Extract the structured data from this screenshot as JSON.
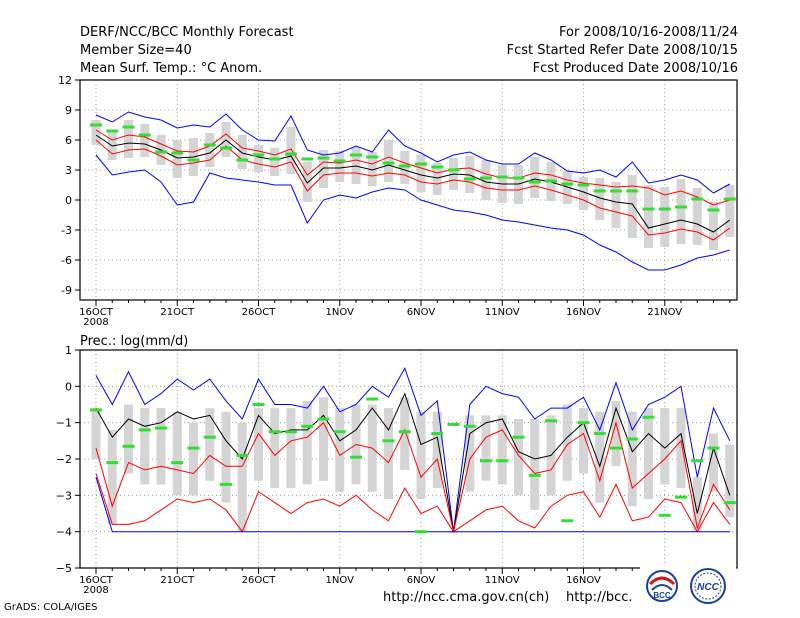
{
  "header": {
    "title": "DERF/NCC/BCC Monthly Forecast",
    "member_size": "Member Size=40",
    "temp_label": "Mean Surf. Temp.: °C Anom.",
    "period": "For 2008/10/16-2008/11/24",
    "started": "Fcst Started Refer Date 2008/10/15",
    "produced": "Fcst Produced Date 2008/10/16"
  },
  "footer": {
    "grads": "GrADS: COLA/IGES",
    "url1": "http://ncc.cma.gov.cn(ch)",
    "url2": "http://bcc.",
    "logo1": "BCC",
    "logo2": "NCC"
  },
  "colors": {
    "envelope": "#0000ff",
    "spread": "#ff0000",
    "mean": "#000000",
    "obs": "#33dd33",
    "box": "#d4d4d4"
  },
  "chart_data": [
    {
      "type": "line",
      "title": "Mean Surf. Temp.: °C Anom.",
      "ylim": [
        -10,
        12
      ],
      "yticks": [
        -9,
        -6,
        -3,
        0,
        3,
        6,
        9,
        12
      ],
      "ytick_labels": [
        "-9",
        "-6",
        "-3",
        "0",
        "3",
        "6",
        "9",
        "12"
      ],
      "xtick_days": [
        1,
        6,
        11,
        16,
        21,
        26,
        31,
        36
      ],
      "xtick_labels": [
        "16OCT",
        "21OCT",
        "26OCT",
        "1NOV",
        "6NOV",
        "11NOV",
        "16NOV",
        "21NOV"
      ],
      "xsub_label": "2008",
      "x_days": 40,
      "series": [
        {
          "name": "max",
          "values": [
            8.5,
            7.8,
            8.8,
            8.3,
            8.0,
            7.2,
            7.5,
            7.3,
            8.6,
            7.0,
            6.0,
            5.9,
            8.4,
            5.0,
            4.5,
            4.7,
            5.4,
            4.8,
            7.0,
            5.4,
            4.7,
            3.8,
            4.5,
            4.8,
            4.0,
            3.6,
            3.6,
            4.7,
            4.0,
            2.9,
            2.7,
            3.0,
            2.3,
            3.8,
            1.7,
            2.0,
            2.5,
            2.0,
            0.7,
            1.6
          ]
        },
        {
          "name": "upper",
          "values": [
            7.0,
            6.0,
            6.5,
            6.3,
            5.6,
            4.9,
            4.8,
            5.4,
            6.6,
            5.2,
            4.9,
            4.5,
            5.1,
            2.5,
            3.8,
            3.7,
            4.0,
            3.6,
            4.3,
            3.7,
            3.2,
            2.7,
            3.1,
            3.2,
            2.6,
            2.2,
            2.2,
            2.7,
            2.5,
            2.0,
            1.7,
            1.5,
            1.3,
            1.4,
            1.2,
            0.5,
            0.9,
            0.3,
            -0.5,
            0.0
          ]
        },
        {
          "name": "mean",
          "values": [
            6.5,
            5.4,
            5.7,
            5.6,
            5.0,
            4.2,
            4.3,
            4.7,
            6.0,
            4.7,
            4.3,
            4.0,
            4.4,
            1.7,
            3.2,
            3.2,
            3.4,
            3.0,
            3.5,
            3.0,
            2.5,
            2.2,
            2.6,
            2.5,
            1.8,
            1.6,
            1.6,
            2.1,
            1.8,
            1.3,
            0.8,
            0.2,
            -0.2,
            -0.4,
            -2.8,
            -2.4,
            -2.0,
            -2.4,
            -3.2,
            -2.0
          ]
        },
        {
          "name": "lower",
          "values": [
            6.0,
            4.6,
            5.0,
            5.1,
            4.4,
            3.5,
            3.7,
            4.0,
            5.4,
            4.0,
            3.6,
            3.3,
            3.8,
            0.9,
            2.5,
            2.7,
            2.7,
            2.4,
            2.7,
            2.5,
            1.8,
            1.6,
            2.0,
            1.8,
            1.2,
            1.0,
            1.0,
            1.4,
            1.0,
            0.5,
            0.0,
            -0.8,
            -1.2,
            -1.6,
            -3.5,
            -3.3,
            -2.9,
            -3.2,
            -4.0,
            -2.8
          ]
        },
        {
          "name": "min",
          "values": [
            4.5,
            2.5,
            2.8,
            3.0,
            1.8,
            -0.5,
            -0.2,
            2.7,
            2.2,
            2.0,
            1.8,
            1.5,
            1.5,
            -2.3,
            0.0,
            0.5,
            0.2,
            0.8,
            1.2,
            1.0,
            0.0,
            -0.5,
            -1.0,
            -1.2,
            -1.5,
            -2.0,
            -2.2,
            -2.5,
            -2.8,
            -3.0,
            -3.5,
            -4.5,
            -5.2,
            -6.2,
            -7.0,
            -7.0,
            -6.5,
            -5.8,
            -5.5,
            -5.0
          ]
        },
        {
          "name": "observed",
          "values": [
            7.5,
            6.9,
            7.3,
            6.5,
            4.8,
            4.7,
            4.0,
            5.5,
            5.2,
            4.0,
            4.5,
            4.1,
            4.6,
            4.1,
            4.2,
            3.9,
            4.5,
            4.3,
            3.7,
            3.4,
            3.6,
            3.3,
            3.0,
            2.1,
            2.2,
            2.3,
            2.2,
            1.8,
            1.9,
            1.6,
            1.5,
            0.9,
            0.9,
            0.9,
            -0.9,
            -0.9,
            -0.7,
            0.1,
            -1.0,
            0.1
          ]
        }
      ],
      "box_top": [
        8.0,
        6.8,
        8.0,
        7.6,
        6.5,
        6.0,
        6.2,
        6.7,
        7.8,
        6.5,
        5.5,
        5.2,
        7.3,
        3.8,
        5.0,
        4.9,
        5.3,
        4.8,
        6.0,
        4.9,
        4.5,
        3.7,
        4.2,
        4.4,
        4.0,
        3.5,
        3.5,
        4.3,
        3.8,
        2.9,
        2.3,
        2.2,
        1.8,
        2.5,
        1.5,
        1.3,
        2.1,
        1.2,
        -0.2,
        1.5
      ],
      "box_bottom": [
        5.5,
        4.0,
        4.2,
        4.3,
        3.5,
        2.2,
        2.4,
        3.3,
        4.3,
        3.1,
        2.8,
        2.4,
        2.6,
        -0.2,
        1.2,
        1.8,
        1.6,
        1.4,
        1.8,
        1.6,
        0.8,
        0.5,
        1.0,
        0.7,
        0.0,
        -0.3,
        -0.4,
        0.2,
        -0.1,
        -0.4,
        -1.0,
        -2.0,
        -2.8,
        -3.8,
        -4.8,
        -4.7,
        -4.4,
        -4.5,
        -5.0,
        -3.7
      ]
    },
    {
      "type": "line",
      "title": "Prec.: log(mm/d)",
      "ylim": [
        -5,
        1
      ],
      "yticks": [
        -5,
        -4,
        -3,
        -2,
        -1,
        0,
        1
      ],
      "ytick_labels": [
        "−5",
        "−4",
        "−3",
        "−2",
        "−1",
        "0",
        "1"
      ],
      "xtick_days": [
        1,
        6,
        11,
        16,
        21,
        26,
        31,
        36
      ],
      "xtick_labels": [
        "16OCT",
        "21OCT",
        "26OCT",
        "1NOV",
        "6NOV",
        "11NOV",
        "16NOV",
        "21NOV"
      ],
      "xsub_label": "2008",
      "x_days": 40,
      "series": [
        {
          "name": "max",
          "values": [
            0.3,
            -0.5,
            0.4,
            -0.5,
            -0.2,
            0.2,
            -0.1,
            0.2,
            -0.4,
            -0.9,
            0.2,
            -0.5,
            -0.5,
            -0.6,
            0.0,
            -0.7,
            -0.5,
            0.0,
            -0.3,
            0.5,
            -0.8,
            -0.4,
            -4.0,
            -0.5,
            0.0,
            -0.2,
            -0.3,
            -0.9,
            -0.6,
            -0.6,
            -0.3,
            -1.2,
            0.1,
            -1.2,
            -0.5,
            -0.3,
            0.0,
            -2.5,
            -0.6,
            -1.5
          ]
        },
        {
          "name": "mean",
          "values": [
            -0.6,
            -1.4,
            -0.9,
            -1.1,
            -1.0,
            -0.7,
            -0.9,
            -0.8,
            -1.5,
            -2.0,
            -0.8,
            -1.3,
            -1.2,
            -1.2,
            -0.8,
            -1.5,
            -1.2,
            -0.6,
            -1.2,
            -0.2,
            -1.6,
            -1.4,
            -4.0,
            -1.3,
            -1.0,
            -0.9,
            -1.8,
            -2.0,
            -1.9,
            -1.4,
            -1.0,
            -2.2,
            -0.6,
            -1.8,
            -1.3,
            -1.7,
            -1.3,
            -3.5,
            -1.7,
            -3.0
          ]
        },
        {
          "name": "upper",
          "values": [
            -1.7,
            -3.3,
            -2.1,
            -2.3,
            -2.2,
            -2.3,
            -2.4,
            -1.9,
            -2.2,
            -2.2,
            -1.3,
            -1.9,
            -1.5,
            -1.4,
            -1.0,
            -1.9,
            -1.6,
            -1.7,
            -2.1,
            -1.2,
            -2.5,
            -2.0,
            -4.0,
            -2.0,
            -1.4,
            -1.2,
            -1.9,
            -2.4,
            -2.3,
            -1.6,
            -1.3,
            -2.6,
            -1.0,
            -2.8,
            -2.4,
            -2.0,
            -1.5,
            -3.9,
            -2.7,
            -3.4
          ]
        },
        {
          "name": "lower",
          "values": [
            -2.4,
            -3.8,
            -3.8,
            -3.7,
            -3.4,
            -3.1,
            -3.2,
            -3.1,
            -3.4,
            -4.0,
            -2.9,
            -3.2,
            -3.5,
            -3.2,
            -3.1,
            -3.3,
            -3.0,
            -3.4,
            -3.7,
            -2.8,
            -3.5,
            -3.3,
            -4.0,
            -3.7,
            -3.4,
            -3.3,
            -3.7,
            -3.9,
            -3.3,
            -3.0,
            -2.9,
            -3.6,
            -2.7,
            -3.7,
            -3.6,
            -3.1,
            -3.2,
            -4.0,
            -3.2,
            -3.8
          ]
        },
        {
          "name": "min",
          "values": [
            -2.5,
            -4.0,
            -4.0,
            -4.0,
            -4.0,
            -4.0,
            -4.0,
            -4.0,
            -4.0,
            -4.0,
            -4.0,
            -4.0,
            -4.0,
            -4.0,
            -4.0,
            -4.0,
            -4.0,
            -4.0,
            -4.0,
            -4.0,
            -4.0,
            -4.0,
            -4.0,
            -4.0,
            -4.0,
            -4.0,
            -4.0,
            -4.0,
            -4.0,
            -4.0,
            -4.0,
            -4.0,
            -4.0,
            -4.0,
            -4.0,
            -4.0,
            -4.0,
            -4.0,
            -4.0,
            -4.0
          ]
        },
        {
          "name": "observed",
          "values": [
            -0.65,
            -2.1,
            -1.65,
            -1.2,
            -1.15,
            -2.1,
            -1.7,
            -1.4,
            -2.7,
            -1.9,
            -0.5,
            -1.25,
            -1.25,
            -1.1,
            -0.9,
            -1.25,
            -1.95,
            -0.35,
            -1.5,
            -1.25,
            -4.0,
            -1.3,
            -1.05,
            -1.1,
            -2.05,
            -2.05,
            -1.4,
            -2.45,
            -0.95,
            -3.7,
            -1.0,
            -1.3,
            -1.7,
            -1.45,
            -0.85,
            -3.55,
            -3.05,
            -2.05,
            -1.7,
            -3.2
          ]
        }
      ],
      "box_top": [
        -0.6,
        -1.2,
        -0.5,
        -0.6,
        -0.6,
        -0.7,
        -1.0,
        -0.6,
        -0.7,
        -1.0,
        -0.6,
        -0.6,
        -0.6,
        -0.4,
        -0.3,
        -0.6,
        -0.5,
        -0.5,
        -0.6,
        -0.3,
        -0.7,
        -0.7,
        -4.0,
        -0.8,
        -0.8,
        -0.8,
        -0.9,
        -0.9,
        -0.8,
        -0.5,
        -0.6,
        -0.7,
        -0.4,
        -0.7,
        -0.6,
        -0.6,
        -0.6,
        -2.5,
        -1.3,
        -1.6
      ],
      "box_bottom": [
        -2.0,
        -3.8,
        -2.4,
        -2.7,
        -2.7,
        -3.0,
        -3.0,
        -2.6,
        -3.2,
        -4.0,
        -2.6,
        -2.8,
        -2.8,
        -2.7,
        -2.6,
        -2.9,
        -2.7,
        -2.9,
        -3.1,
        -2.3,
        -3.1,
        -2.8,
        -4.0,
        -2.9,
        -2.6,
        -2.7,
        -3.0,
        -3.4,
        -3.0,
        -2.6,
        -2.4,
        -3.2,
        -2.2,
        -3.3,
        -3.1,
        -2.7,
        -2.8,
        -4.0,
        -2.9,
        -3.6
      ]
    }
  ]
}
